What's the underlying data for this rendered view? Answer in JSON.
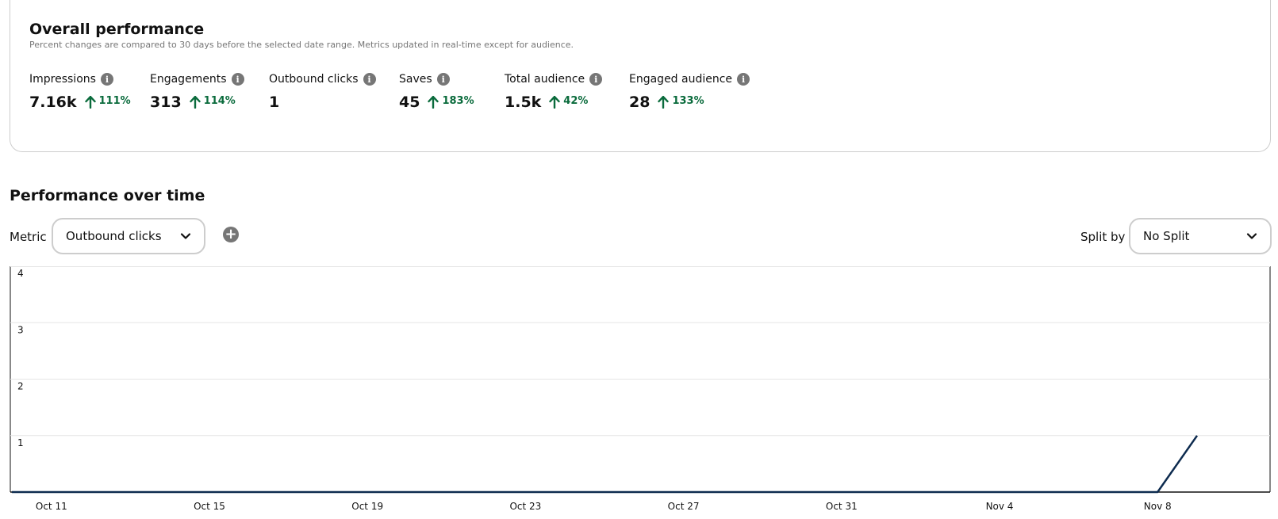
{
  "overall": {
    "title": "Overall performance",
    "subtitle": "Percent changes are compared to 30 days before the selected date range. Metrics updated in real-time except for audience.",
    "metrics": [
      {
        "label": "Impressions",
        "value": "7.16k",
        "change": "111%"
      },
      {
        "label": "Engagements",
        "value": "313",
        "change": "114%"
      },
      {
        "label": "Outbound clicks",
        "value": "1",
        "change": ""
      },
      {
        "label": "Saves",
        "value": "45",
        "change": "183%"
      },
      {
        "label": "Total audience",
        "value": "1.5k",
        "change": "42%"
      },
      {
        "label": "Engaged audience",
        "value": "28",
        "change": "133%"
      }
    ]
  },
  "over_time": {
    "title": "Performance over time",
    "metric_label": "Metric",
    "metric_selected": "Outbound clicks",
    "split_label": "Split by",
    "split_selected": "No Split"
  },
  "colors": {
    "positive": "#0a6b3c",
    "line": "#0d2b4f",
    "border": "#cdcdcd",
    "grid": "#e6e6e6"
  },
  "chart_data": {
    "type": "line",
    "x": [
      "Oct 10",
      "Oct 11",
      "Oct 12",
      "Oct 13",
      "Oct 14",
      "Oct 15",
      "Oct 16",
      "Oct 17",
      "Oct 18",
      "Oct 19",
      "Oct 20",
      "Oct 21",
      "Oct 22",
      "Oct 23",
      "Oct 24",
      "Oct 25",
      "Oct 26",
      "Oct 27",
      "Oct 28",
      "Oct 29",
      "Oct 30",
      "Oct 31",
      "Nov 1",
      "Nov 2",
      "Nov 3",
      "Nov 4",
      "Nov 5",
      "Nov 6",
      "Nov 7",
      "Nov 8",
      "Nov 9"
    ],
    "series": [
      {
        "values": [
          0,
          0,
          0,
          0,
          0,
          0,
          0,
          0,
          0,
          0,
          0,
          0,
          0,
          0,
          0,
          0,
          0,
          0,
          0,
          0,
          0,
          0,
          0,
          0,
          0,
          0,
          0,
          0,
          0,
          0,
          1
        ]
      }
    ],
    "x_ticks": [
      "Oct 11",
      "Oct 15",
      "Oct 19",
      "Oct 23",
      "Oct 27",
      "Oct 31",
      "Nov 4",
      "Nov 8"
    ],
    "y_ticks": [
      1,
      2,
      3,
      4
    ],
    "ylim": [
      0,
      4
    ],
    "grid": true
  }
}
